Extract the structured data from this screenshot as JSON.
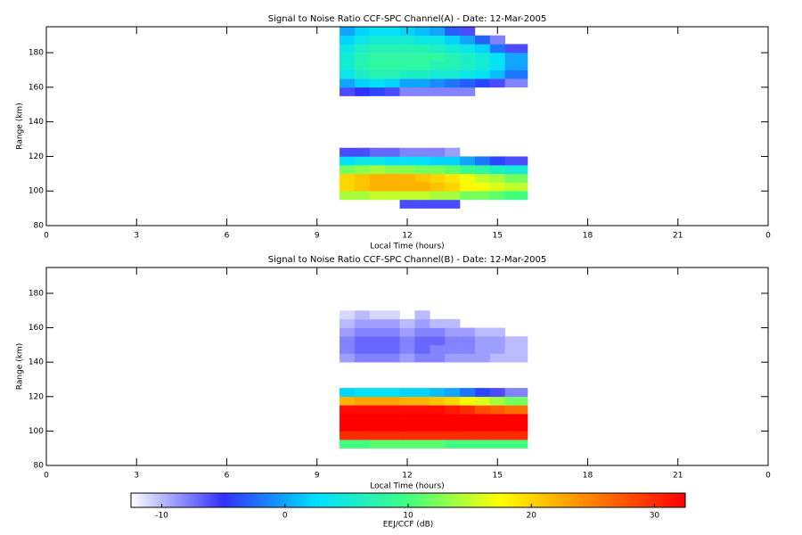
{
  "chart_data": [
    {
      "type": "heatmap",
      "title": "Signal to Noise Ratio CCF-SPC Channel(A) - Date: 12-Mar-2005",
      "x_label": "Local Time (hours)",
      "y_label": "Range (km)",
      "xlim": [
        0,
        24
      ],
      "xticks": [
        0,
        3,
        6,
        9,
        12,
        15,
        18,
        21,
        {
          "value": 24,
          "label": "0"
        }
      ],
      "ylim": [
        80,
        195
      ],
      "yticks": [
        80,
        100,
        120,
        140,
        160,
        180
      ],
      "x_bins": [
        9.75,
        10.25,
        10.75,
        11.25,
        11.75,
        12.25,
        12.75,
        13.25,
        13.75,
        14.25,
        14.75,
        15.25,
        16
      ],
      "y_bins": [
        90,
        95,
        100,
        105,
        110,
        115,
        120,
        125,
        130,
        135,
        140,
        145,
        150,
        155,
        160,
        165,
        170,
        175,
        180,
        185,
        190,
        195
      ],
      "values": [
        [
          null,
          null,
          null,
          null,
          -6,
          -6,
          -6,
          -6,
          null,
          null,
          null,
          null
        ],
        [
          14,
          14,
          15,
          15,
          15,
          15,
          14,
          14,
          12,
          12,
          11,
          10
        ],
        [
          20,
          21,
          22,
          22,
          22,
          22,
          21,
          20,
          18,
          17,
          16,
          15
        ],
        [
          20,
          21,
          22,
          22,
          22,
          21,
          20,
          19,
          17,
          15,
          14,
          12
        ],
        [
          12,
          13,
          14,
          13,
          13,
          12,
          12,
          11,
          9,
          8,
          6,
          5
        ],
        [
          3,
          4,
          4,
          3,
          3,
          3,
          2,
          2,
          0,
          -2,
          -4,
          -6
        ],
        [
          -6,
          -6,
          -7,
          -7,
          -8,
          -8,
          -8,
          -9,
          null,
          null,
          null,
          null
        ],
        [
          null,
          null,
          null,
          null,
          null,
          null,
          null,
          null,
          null,
          null,
          null,
          null
        ],
        [
          null,
          null,
          null,
          null,
          null,
          null,
          null,
          null,
          null,
          null,
          null,
          null
        ],
        [
          null,
          null,
          null,
          null,
          null,
          null,
          null,
          null,
          null,
          null,
          null,
          null
        ],
        [
          null,
          null,
          null,
          null,
          null,
          null,
          null,
          null,
          null,
          null,
          null,
          null
        ],
        [
          null,
          null,
          null,
          null,
          null,
          null,
          null,
          null,
          null,
          null,
          null,
          null
        ],
        [
          null,
          null,
          null,
          null,
          null,
          null,
          null,
          null,
          null,
          null,
          null,
          null
        ],
        [
          -6,
          -5,
          -4,
          -6,
          -8,
          -8,
          -8,
          -8,
          -8,
          null,
          null,
          null
        ],
        [
          0,
          2,
          3,
          2,
          0,
          0,
          -1,
          -2,
          -3,
          -4,
          -6,
          -8
        ],
        [
          4,
          6,
          7,
          7,
          6,
          6,
          5,
          5,
          4,
          3,
          1,
          -2
        ],
        [
          5,
          7,
          8,
          8,
          8,
          8,
          7,
          7,
          6,
          5,
          3,
          0
        ],
        [
          5,
          7,
          8,
          8,
          8,
          8,
          8,
          7,
          6,
          5,
          3,
          0
        ],
        [
          4,
          6,
          7,
          7,
          7,
          7,
          6,
          5,
          4,
          2,
          -2,
          -6
        ],
        [
          2,
          4,
          5,
          5,
          5,
          4,
          4,
          2,
          0,
          -3,
          -8,
          null
        ],
        [
          0,
          2,
          3,
          3,
          2,
          1,
          0,
          -3,
          -6,
          null,
          null,
          null
        ]
      ]
    },
    {
      "type": "heatmap",
      "title": "Signal to Noise Ratio CCF-SPC Channel(B) - Date: 12-Mar-2005",
      "x_label": "Local Time (hours)",
      "y_label": "Range (km)",
      "xlim": [
        0,
        24
      ],
      "xticks": [
        0,
        3,
        6,
        9,
        12,
        15,
        18,
        21,
        {
          "value": 24,
          "label": "0"
        }
      ],
      "ylim": [
        80,
        195
      ],
      "yticks": [
        80,
        100,
        120,
        140,
        160,
        180
      ],
      "x_bins": [
        9.75,
        10.25,
        10.75,
        11.25,
        11.75,
        12.25,
        12.75,
        13.25,
        13.75,
        14.25,
        14.75,
        15.25,
        16
      ],
      "y_bins": [
        90,
        95,
        100,
        105,
        110,
        115,
        120,
        125,
        130,
        135,
        140,
        145,
        150,
        155,
        160,
        165,
        170,
        175,
        180,
        185,
        190,
        195
      ],
      "values": [
        [
          10,
          10,
          11,
          11,
          11,
          11,
          11,
          10,
          10,
          10,
          10,
          10
        ],
        [
          30,
          30,
          30,
          30,
          30,
          30,
          30,
          30,
          30,
          30,
          30,
          30
        ],
        [
          33,
          33,
          33,
          33,
          33,
          33,
          33,
          33,
          33,
          33,
          33,
          33
        ],
        [
          33,
          33,
          33,
          33,
          33,
          33,
          33,
          33,
          33,
          33,
          33,
          33
        ],
        [
          32,
          32,
          32,
          32,
          32,
          32,
          32,
          31,
          30,
          28,
          27,
          26
        ],
        [
          22,
          23,
          23,
          23,
          22,
          22,
          21,
          20,
          18,
          16,
          14,
          12
        ],
        [
          2,
          3,
          3,
          3,
          2,
          2,
          1,
          0,
          -2,
          -4,
          -6,
          -8
        ],
        [
          null,
          null,
          null,
          null,
          null,
          null,
          null,
          null,
          null,
          null,
          null,
          null
        ],
        [
          null,
          null,
          null,
          null,
          null,
          null,
          null,
          null,
          null,
          null,
          null,
          null
        ],
        [
          null,
          null,
          null,
          null,
          null,
          null,
          null,
          null,
          null,
          null,
          null,
          null
        ],
        [
          -9,
          -8,
          -8,
          -8,
          -9,
          -8,
          -8,
          -9,
          -9,
          -9,
          -10,
          -10
        ],
        [
          -8,
          -7,
          -7,
          -7,
          -8,
          -7,
          -8,
          -8,
          -8,
          -9,
          -9,
          -10
        ],
        [
          -8,
          -7,
          -7,
          -7,
          -8,
          -7,
          -7,
          -8,
          -8,
          -9,
          -9,
          -10
        ],
        [
          -9,
          -8,
          -8,
          -8,
          -9,
          -8,
          -8,
          -9,
          -9,
          -10,
          -10,
          null
        ],
        [
          -10,
          -9,
          -9,
          -9,
          -10,
          -9,
          -10,
          -10,
          null,
          null,
          null,
          null
        ],
        [
          -11,
          -10,
          -11,
          -11,
          null,
          -10,
          null,
          null,
          null,
          null,
          null,
          null
        ],
        [
          null,
          null,
          null,
          null,
          null,
          null,
          null,
          null,
          null,
          null,
          null,
          null
        ],
        [
          null,
          null,
          null,
          null,
          null,
          null,
          null,
          null,
          null,
          null,
          null,
          null
        ],
        [
          null,
          null,
          null,
          null,
          null,
          null,
          null,
          null,
          null,
          null,
          null,
          null
        ],
        [
          null,
          null,
          null,
          null,
          null,
          null,
          null,
          null,
          null,
          null,
          null,
          null
        ],
        [
          null,
          null,
          null,
          null,
          null,
          null,
          null,
          null,
          null,
          null,
          null,
          null
        ]
      ]
    }
  ],
  "colorbar": {
    "label": "EEJ/CCF (dB)",
    "clim": [
      -12.5,
      32.5
    ],
    "ticks": [
      -10,
      0,
      10,
      20,
      30
    ],
    "colors": [
      "#ffffff",
      "#3030ff",
      "#00e0ff",
      "#40ff80",
      "#ffff00",
      "#ff8000",
      "#ff0000"
    ]
  }
}
